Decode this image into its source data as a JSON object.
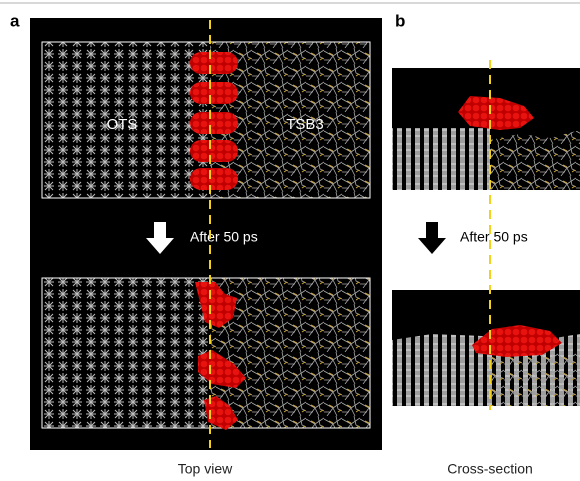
{
  "panels": [
    {
      "label": "a",
      "annotations": [
        "OTS",
        "TSB3"
      ],
      "step": "After 50 ps",
      "caption": "Top view"
    },
    {
      "label": "b",
      "step": "After 50 ps",
      "caption": "Cross-section"
    }
  ]
}
